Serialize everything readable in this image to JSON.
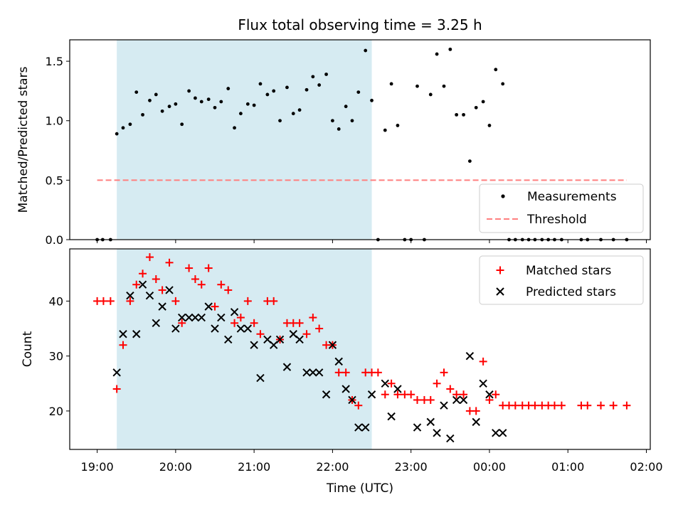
{
  "figure": {
    "title": "Flux total observing time = 3.25 h",
    "xlabel": "Time (UTC)",
    "x_tick_labels": [
      "19:00",
      "20:00",
      "21:00",
      "22:00",
      "23:00",
      "00:00",
      "01:00",
      "02:00"
    ],
    "x_tick_hours": [
      0,
      1,
      2,
      3,
      4,
      5,
      6,
      7
    ],
    "x_unit_note": "hours after 19:00 UTC",
    "xlim_hours": [
      -0.35,
      7.05
    ],
    "shaded_span_hours": [
      0.25,
      3.5
    ],
    "shade_color": "#add8e6"
  },
  "chart_data": [
    {
      "type": "scatter",
      "ylabel": "Matched/Predicted stars",
      "ylim": [
        0,
        1.68
      ],
      "yticks": [
        0.0,
        0.5,
        1.0,
        1.5
      ],
      "ytick_labels": [
        "0.0",
        "0.5",
        "1.0",
        "1.5"
      ],
      "legend_position": "lower-right",
      "threshold": {
        "name": "Threshold",
        "value": 0.5,
        "color": "#ff7f7f",
        "x_range_hours": [
          0.0,
          6.75
        ]
      },
      "series": [
        {
          "name": "Measurements",
          "color": "#000000",
          "x": [
            0.0,
            0.07,
            0.17,
            0.25,
            0.33,
            0.42,
            0.5,
            0.58,
            0.67,
            0.75,
            0.83,
            0.92,
            1.0,
            1.08,
            1.17,
            1.25,
            1.33,
            1.42,
            1.5,
            1.58,
            1.67,
            1.75,
            1.83,
            1.92,
            2.0,
            2.08,
            2.17,
            2.25,
            2.33,
            2.42,
            2.5,
            2.58,
            2.67,
            2.75,
            2.83,
            2.92,
            3.0,
            3.08,
            3.17,
            3.25,
            3.33,
            3.42,
            3.5,
            3.58,
            3.67,
            3.75,
            3.83,
            3.92,
            4.0,
            4.08,
            4.17,
            4.25,
            4.33,
            4.42,
            4.5,
            4.58,
            4.67,
            4.75,
            4.83,
            4.92,
            5.0,
            5.08,
            5.17,
            5.25,
            5.33,
            5.42,
            5.5,
            5.58,
            5.67,
            5.75,
            5.83,
            5.92,
            6.17,
            6.25,
            6.42,
            6.58,
            6.75
          ],
          "y": [
            0.0,
            0.0,
            0.0,
            0.89,
            0.94,
            0.97,
            1.24,
            1.05,
            1.17,
            1.22,
            1.08,
            1.12,
            1.14,
            0.97,
            1.25,
            1.19,
            1.16,
            1.18,
            1.11,
            1.16,
            1.27,
            0.94,
            1.06,
            1.14,
            1.13,
            1.31,
            1.22,
            1.25,
            1.0,
            1.28,
            1.06,
            1.09,
            1.26,
            1.37,
            1.3,
            1.39,
            1.0,
            0.93,
            1.12,
            1.0,
            1.24,
            1.59,
            1.17,
            0.0,
            0.92,
            1.31,
            0.96,
            0.0,
            0.0,
            1.29,
            0.0,
            1.22,
            1.56,
            1.29,
            1.6,
            1.05,
            1.05,
            0.66,
            1.11,
            1.16,
            0.96,
            1.43,
            1.31,
            0.0,
            0.0,
            0.0,
            0.0,
            0.0,
            0.0,
            0.0,
            0.0,
            0.0,
            0.0,
            0.0,
            0.0,
            0.0,
            0.0
          ]
        }
      ]
    },
    {
      "type": "scatter",
      "ylabel": "Count",
      "ylim": [
        13.0,
        49.5
      ],
      "yticks": [
        20,
        30,
        40
      ],
      "ytick_labels": [
        "20",
        "30",
        "40"
      ],
      "legend_position": "upper-right",
      "series": [
        {
          "name": "Matched stars",
          "marker": "plus",
          "color": "#ff0000",
          "x": [
            0.0,
            0.08,
            0.17,
            0.25,
            0.33,
            0.42,
            0.5,
            0.58,
            0.67,
            0.75,
            0.83,
            0.92,
            1.0,
            1.08,
            1.17,
            1.25,
            1.33,
            1.42,
            1.5,
            1.58,
            1.67,
            1.75,
            1.83,
            1.92,
            2.0,
            2.08,
            2.17,
            2.25,
            2.33,
            2.42,
            2.5,
            2.58,
            2.67,
            2.75,
            2.83,
            2.92,
            3.0,
            3.08,
            3.17,
            3.25,
            3.33,
            3.42,
            3.5,
            3.58,
            3.67,
            3.75,
            3.83,
            3.92,
            4.0,
            4.08,
            4.17,
            4.25,
            4.33,
            4.42,
            4.5,
            4.58,
            4.67,
            4.75,
            4.83,
            4.92,
            5.0,
            5.08,
            5.17,
            5.25,
            5.33,
            5.42,
            5.5,
            5.58,
            5.67,
            5.75,
            5.83,
            5.92,
            6.17,
            6.25,
            6.42,
            6.58,
            6.75
          ],
          "y": [
            40,
            40,
            40,
            24,
            32,
            40,
            43,
            45,
            48,
            44,
            42,
            47,
            40,
            36,
            46,
            44,
            43,
            46,
            39,
            43,
            42,
            36,
            37,
            40,
            36,
            34,
            40,
            40,
            33,
            36,
            36,
            36,
            34,
            37,
            35,
            32,
            32,
            27,
            27,
            22,
            21,
            27,
            27,
            27,
            23,
            25,
            23,
            23,
            23,
            22,
            22,
            22,
            25,
            27,
            24,
            23,
            23,
            20,
            20,
            29,
            22,
            23,
            21,
            21,
            21,
            21,
            21,
            21,
            21,
            21,
            21,
            21,
            21,
            21,
            21,
            21,
            21
          ]
        },
        {
          "name": "Predicted stars",
          "marker": "x",
          "color": "#000000",
          "x": [
            0.25,
            0.33,
            0.42,
            0.5,
            0.58,
            0.67,
            0.75,
            0.83,
            0.92,
            1.0,
            1.08,
            1.17,
            1.25,
            1.33,
            1.42,
            1.5,
            1.58,
            1.67,
            1.75,
            1.83,
            1.92,
            2.0,
            2.08,
            2.17,
            2.25,
            2.33,
            2.42,
            2.5,
            2.58,
            2.67,
            2.75,
            2.83,
            2.92,
            3.0,
            3.08,
            3.17,
            3.25,
            3.33,
            3.42,
            3.5,
            3.67,
            3.75,
            3.83,
            4.08,
            4.25,
            4.33,
            4.42,
            4.5,
            4.58,
            4.67,
            4.75,
            4.83,
            4.92,
            5.0,
            5.08,
            5.17
          ],
          "y": [
            27,
            34,
            41,
            34,
            43,
            41,
            36,
            39,
            42,
            35,
            37,
            37,
            37,
            37,
            39,
            35,
            37,
            33,
            38,
            35,
            35,
            32,
            26,
            33,
            32,
            33,
            28,
            34,
            33,
            27,
            27,
            27,
            23,
            32,
            29,
            24,
            22,
            17,
            17,
            23,
            25,
            19,
            24,
            17,
            18,
            16,
            21,
            15,
            22,
            22,
            30,
            18,
            25,
            23,
            16,
            16
          ]
        }
      ]
    }
  ]
}
